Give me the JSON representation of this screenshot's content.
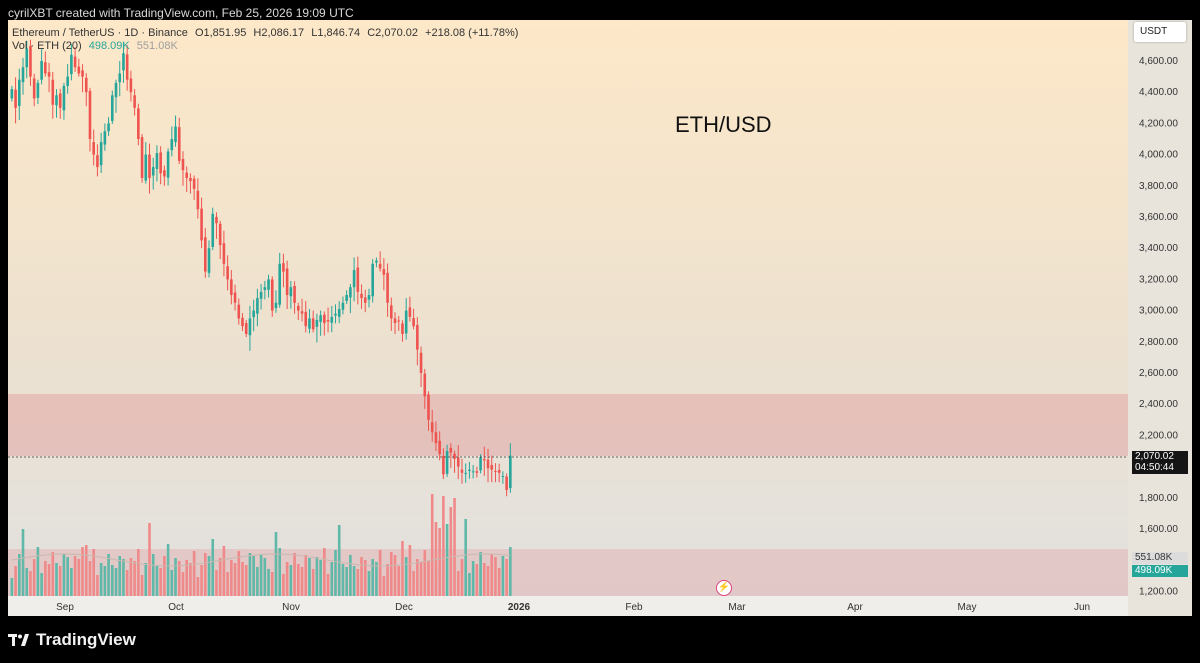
{
  "header": {
    "attribution": "cyrilXBT created with TradingView.com, Feb 25, 2026 19:09 UTC"
  },
  "legend": {
    "symbol": "Ethereum / TetherUS · 1D · Binance",
    "open": "O1,851.95",
    "high": "H2,086.17",
    "low": "L1,846.74",
    "close": "C2,070.02",
    "change": "+218.08 (+11.78%)",
    "vol_label": "Vol · ETH (20)",
    "vol_value": "498.09K",
    "vol_ma": "551.08K"
  },
  "quote_currency": "USDT",
  "chart_title": "ETH/USD",
  "last_price_tag": "2,070.02",
  "countdown": "04:50:44",
  "volume_ma_tag": "551.08K",
  "volume_tag": "498.09K",
  "brand": "TradingView",
  "colors": {
    "up": "#26a69a",
    "down": "#ef5350",
    "zone": "#e6a0a0",
    "background_top": "#fde9c9",
    "background_bottom": "#e3e3e3"
  },
  "chart_data": {
    "type": "candlestick",
    "symbol": "Ethereum / TetherUS",
    "interval": "1D",
    "x_ticks": [
      "Sep",
      "Oct",
      "Nov",
      "Dec",
      "2026",
      "Feb",
      "Mar",
      "Apr",
      "May",
      "Jun"
    ],
    "y_ticks": [
      "4,600.00",
      "4,400.00",
      "4,200.00",
      "4,000.00",
      "3,800.00",
      "3,600.00",
      "3,400.00",
      "3,200.00",
      "3,000.00",
      "2,800.00",
      "2,600.00",
      "2,400.00",
      "2,200.00",
      "2,000.00",
      "1,800.00",
      "1,600.00",
      "1,400.00",
      "1,200.00"
    ],
    "ylim": [
      1150,
      4800
    ],
    "close_series": [
      4420,
      4300,
      4480,
      4560,
      4680,
      4500,
      4360,
      4460,
      4600,
      4520,
      4500,
      4320,
      4380,
      4300,
      4440,
      4500,
      4640,
      4560,
      4520,
      4500,
      4400,
      4100,
      4000,
      3920,
      4080,
      4150,
      4200,
      4380,
      4460,
      4520,
      4650,
      4480,
      4400,
      4300,
      4100,
      3850,
      4000,
      3850,
      3920,
      4010,
      3880,
      3860,
      4020,
      4100,
      4180,
      3960,
      3900,
      3850,
      3830,
      3780,
      3650,
      3450,
      3250,
      3400,
      3620,
      3560,
      3420,
      3300,
      3200,
      3100,
      3050,
      2950,
      2900,
      2850,
      2950,
      3000,
      3080,
      3120,
      3150,
      3200,
      3000,
      3050,
      3300,
      3250,
      3100,
      3150,
      3050,
      3000,
      2980,
      2900,
      2950,
      2880,
      2940,
      2970,
      2920,
      2930,
      2960,
      2980,
      3010,
      3050,
      3100,
      3150,
      3260,
      3120,
      3080,
      3050,
      3100,
      3300,
      3320,
      3270,
      3230,
      3050,
      2950,
      2920,
      2930,
      2850,
      3000,
      2960,
      2900,
      2750,
      2600,
      2450,
      2300,
      2220,
      2150,
      2080,
      1950,
      2100,
      2090,
      2050,
      2000,
      1960,
      1960,
      1980,
      1970,
      1960,
      2060,
      2040,
      1990,
      1980,
      1970,
      1960,
      1940,
      1850,
      2070
    ],
    "zones": [
      {
        "label": "resistance",
        "y_from": 2110,
        "y_to": 2470
      },
      {
        "label": "volume",
        "y_from": 1150,
        "y_to": 1400
      }
    ],
    "last_price": 2070.02
  }
}
